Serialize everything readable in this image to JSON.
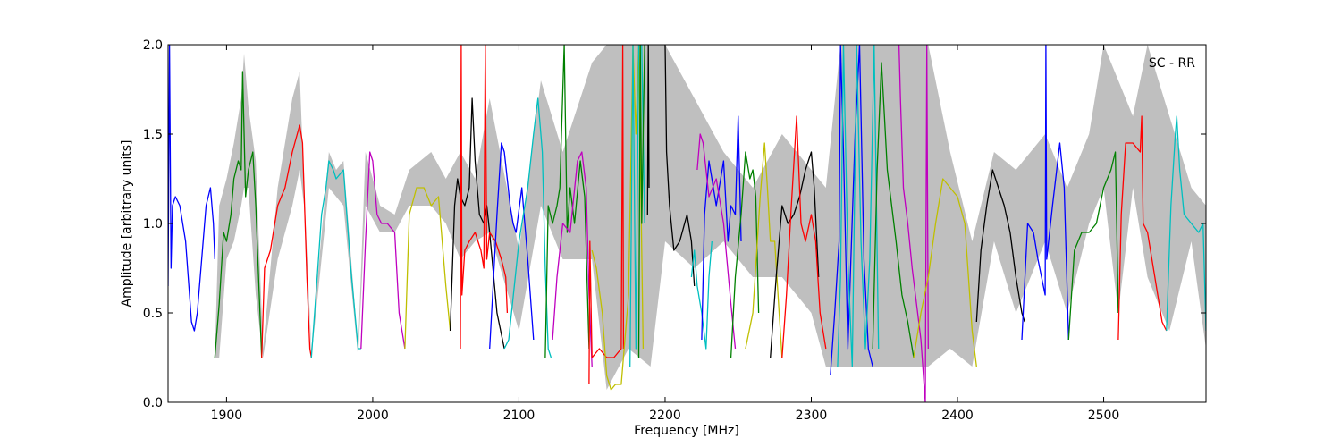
{
  "chart_data": {
    "type": "line",
    "xlabel": "Frequency [MHz]",
    "ylabel": "Amplitude [arbitrary units]",
    "annotation": "SC - RR",
    "xlim": [
      1860,
      2570
    ],
    "ylim": [
      0.0,
      2.0
    ],
    "xticks": [
      1900,
      2000,
      2100,
      2200,
      2300,
      2400,
      2500
    ],
    "xtick_labels": [
      "1900",
      "2000",
      "2100",
      "2200",
      "2300",
      "2400",
      "2500"
    ],
    "yticks": [
      0.0,
      0.5,
      1.0,
      1.5,
      2.0
    ],
    "ytick_labels": [
      "0.0",
      "0.5",
      "1.0",
      "1.5",
      "2.0"
    ],
    "grid": false,
    "legend": "none",
    "background_band": {
      "color": "#bfbfbf",
      "x": [
        1892,
        1895,
        1900,
        1905,
        1910,
        1912,
        1915,
        1920,
        1925,
        1935,
        1945,
        1950,
        1953,
        1958,
        1970,
        1975,
        1980,
        1990,
        1995,
        2005,
        2015,
        2025,
        2040,
        2050,
        2060,
        2070,
        2080,
        2100,
        2115,
        2130,
        2150,
        2160,
        2175,
        2190,
        2200,
        2220,
        2240,
        2260,
        2280,
        2300,
        2310,
        2320,
        2340,
        2360,
        2380,
        2395,
        2410,
        2425,
        2440,
        2460,
        2475,
        2490,
        2500,
        2510,
        2520,
        2530,
        2545,
        2560,
        2570
      ],
      "upper": [
        0.25,
        1.1,
        1.25,
        1.45,
        1.7,
        1.95,
        1.65,
        1.35,
        0.3,
        1.2,
        1.7,
        1.85,
        1.2,
        0.3,
        1.4,
        1.3,
        1.35,
        0.3,
        1.4,
        1.1,
        1.05,
        1.3,
        1.4,
        1.25,
        1.4,
        1.25,
        1.7,
        0.85,
        1.8,
        1.4,
        1.9,
        2.0,
        2.0,
        2.0,
        2.0,
        1.7,
        1.4,
        1.2,
        1.5,
        1.3,
        1.2,
        2.0,
        2.0,
        2.0,
        2.0,
        1.4,
        0.9,
        1.4,
        1.3,
        1.5,
        1.2,
        1.5,
        2.0,
        1.8,
        1.6,
        2.0,
        1.6,
        1.2,
        1.1
      ],
      "lower": [
        0.25,
        0.25,
        0.8,
        0.9,
        1.1,
        1.2,
        1.2,
        0.6,
        0.25,
        0.8,
        1.1,
        1.3,
        1.1,
        0.25,
        1.2,
        1.15,
        1.1,
        0.25,
        1.1,
        0.95,
        0.95,
        1.1,
        1.1,
        1.0,
        0.8,
        0.9,
        0.95,
        0.4,
        1.1,
        0.8,
        0.8,
        0.07,
        0.3,
        0.2,
        0.9,
        0.75,
        0.9,
        0.7,
        0.7,
        0.5,
        0.2,
        0.2,
        0.2,
        0.2,
        0.2,
        0.3,
        0.2,
        0.9,
        0.5,
        0.9,
        0.5,
        1.0,
        1.2,
        0.5,
        1.2,
        0.7,
        0.4,
        0.9,
        0.3
      ]
    },
    "series": [
      {
        "color": "#0000ff",
        "x": [
          1860,
          1861,
          1862,
          1863,
          1865,
          1868,
          1872,
          1876,
          1878,
          1880,
          1883,
          1886,
          1889,
          1891,
          1892
        ],
        "y": [
          0.65,
          2.0,
          0.75,
          1.1,
          1.15,
          1.1,
          0.9,
          0.45,
          0.4,
          0.5,
          0.8,
          1.1,
          1.2,
          1.0,
          0.8
        ]
      },
      {
        "color": "#008000",
        "x": [
          1892,
          1895,
          1898,
          1900,
          1903,
          1905,
          1908,
          1910,
          1911,
          1913,
          1915,
          1918,
          1920,
          1924
        ],
        "y": [
          0.25,
          0.55,
          0.95,
          0.9,
          1.05,
          1.25,
          1.35,
          1.3,
          1.85,
          1.15,
          1.3,
          1.4,
          1.1,
          0.25
        ]
      },
      {
        "color": "#ff0000",
        "x": [
          1924,
          1926,
          1930,
          1935,
          1940,
          1945,
          1950,
          1952,
          1955,
          1957,
          1958
        ],
        "y": [
          0.25,
          0.75,
          0.85,
          1.1,
          1.2,
          1.4,
          1.55,
          1.45,
          0.7,
          0.3,
          0.25
        ]
      },
      {
        "color": "#00bfbf",
        "x": [
          1958,
          1962,
          1965,
          1968,
          1970,
          1973,
          1975,
          1980,
          1985,
          1990,
          1992
        ],
        "y": [
          0.25,
          0.7,
          1.05,
          1.2,
          1.35,
          1.3,
          1.25,
          1.3,
          0.75,
          0.3,
          0.3
        ]
      },
      {
        "color": "#bf00bf",
        "x": [
          1992,
          1995,
          1998,
          2000,
          2003,
          2006,
          2010,
          2015,
          2018,
          2022
        ],
        "y": [
          0.3,
          0.9,
          1.4,
          1.35,
          1.05,
          1.0,
          1.0,
          0.95,
          0.5,
          0.3
        ]
      },
      {
        "color": "#bfbf00",
        "x": [
          2022,
          2025,
          2030,
          2035,
          2040,
          2045,
          2050,
          2053
        ],
        "y": [
          0.3,
          1.05,
          1.2,
          1.2,
          1.1,
          1.15,
          0.65,
          0.4
        ]
      },
      {
        "color": "#000000",
        "x": [
          2053,
          2056,
          2058,
          2060,
          2063,
          2066,
          2068,
          2070,
          2073,
          2076,
          2078,
          2080,
          2085,
          2090
        ],
        "y": [
          0.4,
          1.1,
          1.25,
          1.15,
          1.1,
          1.2,
          1.7,
          1.35,
          1.05,
          1.0,
          1.1,
          0.95,
          0.5,
          0.3
        ]
      },
      {
        "color": "#ff0000",
        "x": [
          2060,
          2060.5,
          2061,
          2063,
          2066,
          2070,
          2074,
          2076,
          2077,
          2078,
          2080,
          2084,
          2088,
          2091,
          2092
        ],
        "y": [
          0.3,
          2.0,
          0.6,
          0.85,
          0.9,
          0.95,
          0.85,
          0.75,
          2.0,
          0.8,
          0.95,
          0.9,
          0.8,
          0.7,
          0.5
        ]
      },
      {
        "color": "#0000ff",
        "x": [
          2080,
          2085,
          2088,
          2090,
          2094,
          2096,
          2098,
          2102,
          2106,
          2110
        ],
        "y": [
          0.3,
          1.05,
          1.45,
          1.4,
          1.1,
          1.0,
          0.95,
          1.2,
          0.8,
          0.35
        ]
      },
      {
        "color": "#00bfbf",
        "x": [
          2090,
          2093,
          2100,
          2106,
          2110,
          2113,
          2116,
          2118,
          2120,
          2122
        ],
        "y": [
          0.3,
          0.35,
          0.9,
          1.2,
          1.5,
          1.7,
          1.4,
          0.75,
          0.3,
          0.25
        ]
      },
      {
        "color": "#008000",
        "x": [
          2118,
          2120,
          2123,
          2126,
          2128,
          2131,
          2133,
          2135,
          2138,
          2142,
          2145,
          2148
        ],
        "y": [
          0.25,
          1.1,
          1.0,
          1.1,
          1.2,
          2.0,
          0.95,
          1.2,
          1.0,
          1.35,
          1.15,
          0.3
        ]
      },
      {
        "color": "#bf00bf",
        "x": [
          2123,
          2126,
          2130,
          2135,
          2140,
          2143,
          2146,
          2148,
          2150
        ],
        "y": [
          0.35,
          0.7,
          1.0,
          0.95,
          1.35,
          1.4,
          1.2,
          0.6,
          0.2
        ]
      },
      {
        "color": "#ff0000",
        "x": [
          2148,
          2148.5,
          2150,
          2155,
          2160,
          2165,
          2170,
          2171,
          2171.5
        ],
        "y": [
          0.1,
          0.9,
          0.25,
          0.3,
          0.25,
          0.25,
          0.3,
          2.0,
          0.3
        ]
      },
      {
        "color": "#bfbf00",
        "x": [
          2150,
          2153,
          2157,
          2160,
          2163,
          2166,
          2170,
          2175,
          2178,
          2180,
          2182,
          2185
        ],
        "y": [
          0.85,
          0.75,
          0.5,
          0.15,
          0.07,
          0.1,
          0.1,
          0.6,
          2.0,
          1.5,
          2.0,
          0.3
        ]
      },
      {
        "color": "#00bfbf",
        "x": [
          2176,
          2178,
          2180,
          2182,
          2184,
          2186
        ],
        "y": [
          0.2,
          2.0,
          0.3,
          2.0,
          2.0,
          1.0
        ]
      },
      {
        "color": "#000000",
        "x": [
          2188,
          2188.5,
          2189
        ],
        "y": [
          1.05,
          2.0,
          1.2
        ]
      },
      {
        "color": "#008000",
        "x": [
          2182,
          2183,
          2184,
          2186
        ],
        "y": [
          0.25,
          2.0,
          1.0,
          2.0
        ]
      },
      {
        "color": "#000000",
        "x": [
          2200,
          2201,
          2203,
          2206,
          2210,
          2215,
          2218,
          2220
        ],
        "y": [
          2.0,
          1.4,
          1.1,
          0.85,
          0.9,
          1.05,
          0.9,
          0.65
        ]
      },
      {
        "color": "#00bfbf",
        "x": [
          2218,
          2220,
          2222,
          2225,
          2228,
          2230,
          2232
        ],
        "y": [
          0.7,
          0.85,
          0.65,
          0.5,
          0.3,
          0.7,
          0.9
        ]
      },
      {
        "color": "#0000ff",
        "x": [
          2225,
          2227,
          2230,
          2235,
          2240,
          2243,
          2245,
          2248,
          2250,
          2252
        ],
        "y": [
          0.35,
          1.05,
          1.35,
          1.1,
          1.35,
          0.9,
          1.1,
          1.05,
          1.6,
          0.9
        ]
      },
      {
        "color": "#bf00bf",
        "x": [
          2222,
          2224,
          2226,
          2230,
          2235,
          2240,
          2245,
          2248
        ],
        "y": [
          1.3,
          1.5,
          1.45,
          1.15,
          1.25,
          1.0,
          0.55,
          0.3
        ]
      },
      {
        "color": "#008000",
        "x": [
          2245,
          2248,
          2252,
          2255,
          2258,
          2260,
          2262,
          2264
        ],
        "y": [
          0.25,
          0.7,
          1.05,
          1.4,
          1.25,
          1.3,
          1.15,
          0.5
        ]
      },
      {
        "color": "#bfbf00",
        "x": [
          2255,
          2260,
          2265,
          2268,
          2270,
          2272,
          2275,
          2278,
          2280
        ],
        "y": [
          0.3,
          0.5,
          1.15,
          1.45,
          1.2,
          0.9,
          0.9,
          0.5,
          0.25
        ]
      },
      {
        "color": "#000000",
        "x": [
          2272,
          2276,
          2280,
          2284,
          2288,
          2292,
          2296,
          2300,
          2302,
          2305
        ],
        "y": [
          0.25,
          0.7,
          1.1,
          1.0,
          1.05,
          1.15,
          1.3,
          1.4,
          1.2,
          0.7
        ]
      },
      {
        "color": "#ff0000",
        "x": [
          2280,
          2283,
          2286,
          2290,
          2293,
          2296,
          2300,
          2303,
          2306,
          2310
        ],
        "y": [
          0.25,
          0.6,
          1.05,
          1.6,
          1.0,
          0.9,
          1.05,
          0.9,
          0.5,
          0.3
        ]
      },
      {
        "color": "#0000ff",
        "x": [
          2313,
          2316,
          2319,
          2320,
          2322,
          2325,
          2330,
          2333,
          2336,
          2339,
          2342
        ],
        "y": [
          0.15,
          0.5,
          0.9,
          2.0,
          1.4,
          0.3,
          1.5,
          2.0,
          0.8,
          0.3,
          0.2
        ]
      },
      {
        "color": "#00bfbf",
        "x": [
          2318,
          2320,
          2322,
          2325,
          2328,
          2331,
          2334,
          2337,
          2340,
          2343,
          2346
        ],
        "y": [
          0.2,
          0.7,
          2.0,
          0.8,
          0.2,
          2.0,
          0.9,
          0.3,
          0.8,
          2.0,
          0.3
        ]
      },
      {
        "color": "#008000",
        "x": [
          2342,
          2345,
          2348,
          2350,
          2352,
          2355,
          2358,
          2362,
          2366,
          2370
        ],
        "y": [
          0.3,
          1.3,
          1.9,
          1.6,
          1.3,
          1.1,
          0.9,
          0.6,
          0.45,
          0.25
        ]
      },
      {
        "color": "#bf00bf",
        "x": [
          2360,
          2361,
          2363,
          2366,
          2369,
          2372,
          2375,
          2378,
          2379,
          2380
        ],
        "y": [
          2.0,
          1.7,
          1.2,
          1.0,
          0.75,
          0.55,
          0.35,
          0.0,
          2.0,
          0.3
        ]
      },
      {
        "color": "#bfbf00",
        "x": [
          2370,
          2375,
          2380,
          2385,
          2390,
          2395,
          2400,
          2405,
          2410,
          2413
        ],
        "y": [
          0.25,
          0.5,
          0.7,
          1.0,
          1.25,
          1.2,
          1.15,
          1.0,
          0.4,
          0.2
        ]
      },
      {
        "color": "#000000",
        "x": [
          2413,
          2416,
          2420,
          2424,
          2428,
          2432,
          2436,
          2440,
          2444,
          2446
        ],
        "y": [
          0.45,
          0.85,
          1.1,
          1.3,
          1.2,
          1.1,
          0.95,
          0.7,
          0.5,
          0.45
        ]
      },
      {
        "color": "#0000ff",
        "x": [
          2444,
          2448,
          2452,
          2455,
          2460,
          2460.5,
          2461,
          2465,
          2470,
          2473,
          2476
        ],
        "y": [
          0.35,
          1.0,
          0.95,
          0.8,
          0.6,
          2.0,
          0.8,
          1.1,
          1.45,
          1.2,
          0.35
        ]
      },
      {
        "color": "#008000",
        "x": [
          2476,
          2480,
          2485,
          2490,
          2495,
          2500,
          2505,
          2508,
          2510
        ],
        "y": [
          0.35,
          0.85,
          0.95,
          0.95,
          1.0,
          1.2,
          1.3,
          1.4,
          0.5
        ]
      },
      {
        "color": "#ff0000",
        "x": [
          2510,
          2512,
          2515,
          2520,
          2525,
          2526,
          2527,
          2530,
          2535,
          2540,
          2543
        ],
        "y": [
          0.35,
          1.05,
          1.45,
          1.45,
          1.4,
          1.6,
          1.0,
          0.95,
          0.7,
          0.45,
          0.4
        ]
      },
      {
        "color": "#00bfbf",
        "x": [
          2543,
          2546,
          2549,
          2550,
          2552,
          2555,
          2560,
          2565,
          2568,
          2570
        ],
        "y": [
          0.4,
          1.1,
          1.5,
          1.6,
          1.3,
          1.05,
          1.0,
          0.95,
          1.0,
          0.4
        ]
      }
    ]
  }
}
